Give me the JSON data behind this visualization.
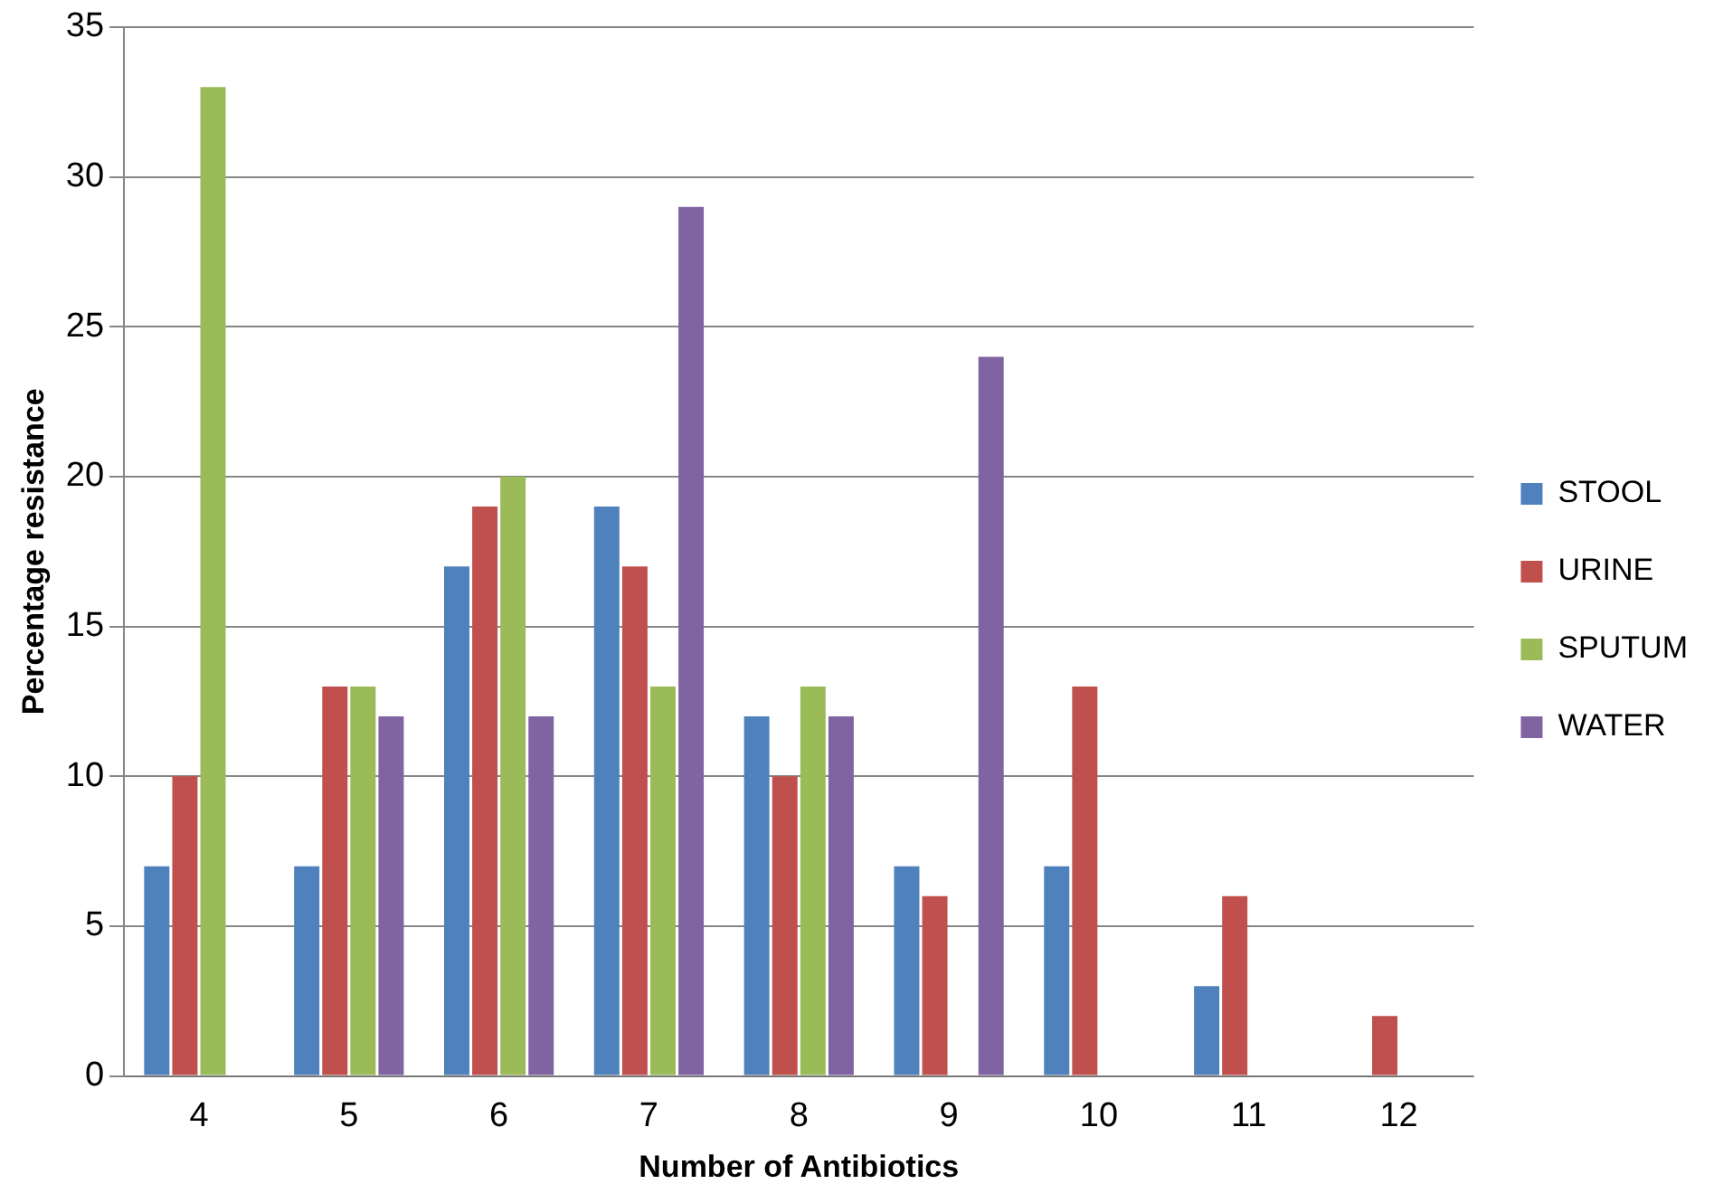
{
  "chart_data": {
    "type": "bar",
    "xlabel": "Number of Antibiotics",
    "ylabel": "Percentage resistance",
    "categories": [
      "4",
      "5",
      "6",
      "7",
      "8",
      "9",
      "10",
      "11",
      "12"
    ],
    "series": [
      {
        "name": "STOOL",
        "color": "#4f81bd",
        "values": [
          7,
          7,
          17,
          19,
          12,
          7,
          7,
          3,
          0
        ]
      },
      {
        "name": "URINE",
        "color": "#c0504d",
        "values": [
          10,
          13,
          19,
          17,
          10,
          6,
          13,
          6,
          2
        ]
      },
      {
        "name": "SPUTUM",
        "color": "#9bbb59",
        "values": [
          33,
          13,
          20,
          13,
          13,
          0,
          0,
          0,
          0
        ]
      },
      {
        "name": "WATER",
        "color": "#8064a2",
        "values": [
          0,
          12,
          12,
          29,
          12,
          24,
          0,
          0,
          0
        ]
      }
    ],
    "ylim": [
      0,
      35
    ],
    "yticks": [
      0,
      5,
      10,
      15,
      20,
      25,
      30,
      35
    ],
    "grid": "y",
    "legend": "right"
  }
}
